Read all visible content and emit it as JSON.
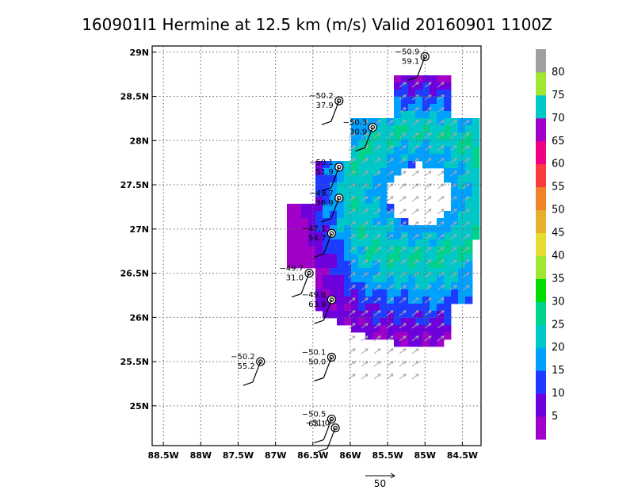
{
  "chart_data": {
    "type": "heatmap",
    "title": "160901I1 Hermine at 12.5 km (m/s) Valid 20160901 1100Z",
    "x_ticks": [
      "88.5W",
      "88W",
      "87.5W",
      "87W",
      "86.5W",
      "86W",
      "85.5W",
      "85W",
      "84.5W"
    ],
    "x_tick_values": [
      -88.5,
      -88.0,
      -87.5,
      -87.0,
      -86.5,
      -86.0,
      -85.5,
      -85.0,
      -84.5
    ],
    "y_ticks": [
      "29N",
      "28.5N",
      "28N",
      "27.5N",
      "27N",
      "26.5N",
      "26N",
      "25.5N",
      "25N"
    ],
    "y_tick_values": [
      29.0,
      28.5,
      28.0,
      27.5,
      27.0,
      26.5,
      26.0,
      25.5,
      25.0
    ],
    "xlim": [
      -88.65,
      -84.25
    ],
    "ylim": [
      24.55,
      29.07
    ],
    "grid": true,
    "colorbar": {
      "labels": [
        "5",
        "10",
        "15",
        "20",
        "25",
        "30",
        "35",
        "40",
        "45",
        "50",
        "55",
        "60",
        "65",
        "70",
        "75",
        "80"
      ],
      "colors": [
        "#a000c8",
        "#6e00dc",
        "#1e3cff",
        "#00a0ff",
        "#00c8c8",
        "#00d28c",
        "#00dc00",
        "#a0e632",
        "#e6dc32",
        "#e6af2d",
        "#f08228",
        "#fa3c3c",
        "#f00082",
        "#a000c8",
        "#00c8c8",
        "#a0e632",
        "#a0a0a0"
      ]
    },
    "reference_vector": {
      "label": "50"
    },
    "dropsondes": [
      {
        "lon": -85.0,
        "lat": 28.95,
        "pressure": "−50.9",
        "speed": "59.1"
      },
      {
        "lon": -86.15,
        "lat": 28.45,
        "pressure": "−50.2",
        "speed": "37.9"
      },
      {
        "lon": -85.7,
        "lat": 28.15,
        "pressure": "−50.3",
        "speed": "30.9"
      },
      {
        "lon": -86.15,
        "lat": 27.7,
        "pressure": "−50.1",
        "speed": "51.9"
      },
      {
        "lon": -86.15,
        "lat": 27.35,
        "pressure": "−49.7",
        "speed": "36.9"
      },
      {
        "lon": -86.25,
        "lat": 26.95,
        "pressure": "−47.1",
        "speed": "54.7"
      },
      {
        "lon": -86.55,
        "lat": 26.5,
        "pressure": "−49.7",
        "speed": "31.0"
      },
      {
        "lon": -86.25,
        "lat": 26.2,
        "pressure": "−49.8",
        "speed": "63.9"
      },
      {
        "lon": -86.25,
        "lat": 25.55,
        "pressure": "−50.1",
        "speed": "50.0"
      },
      {
        "lon": -87.2,
        "lat": 25.5,
        "pressure": "−50.2",
        "speed": "55.2"
      },
      {
        "lon": -86.25,
        "lat": 24.85,
        "pressure": "−50.5",
        "speed": "63.1"
      },
      {
        "lon": -86.2,
        "lat": 24.75,
        "pressure": "−51.0",
        "speed": ""
      }
    ]
  }
}
